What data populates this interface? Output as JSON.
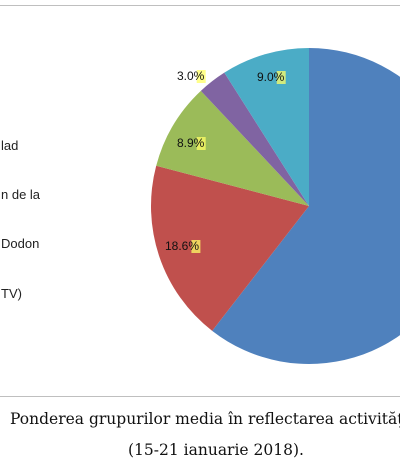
{
  "chart_data": {
    "type": "pie",
    "slices": [
      {
        "label": "",
        "value": 60.5,
        "color": "#4f81bd",
        "data_label": ""
      },
      {
        "label": "",
        "value": 18.6,
        "color": "#c0504d",
        "data_label": "18.6%"
      },
      {
        "label": "",
        "value": 8.9,
        "color": "#9bbb59",
        "data_label": "8.9%"
      },
      {
        "label": "",
        "value": 3.0,
        "color": "#8064a2",
        "data_label": "3.0%"
      },
      {
        "label": "",
        "value": 9.0,
        "color": "#4bacc6",
        "data_label": "9.0%"
      }
    ],
    "label_highlight_color": "#ffff66",
    "legend": {
      "placement": "left",
      "visible_fragments": [
        "lad",
        "n de la",
        "Dodon",
        "TV)"
      ]
    }
  },
  "caption": {
    "line1": "Ponderea grupurilor media în reflectarea activităţ",
    "line2": "(15-21 ianuarie 2018)."
  }
}
